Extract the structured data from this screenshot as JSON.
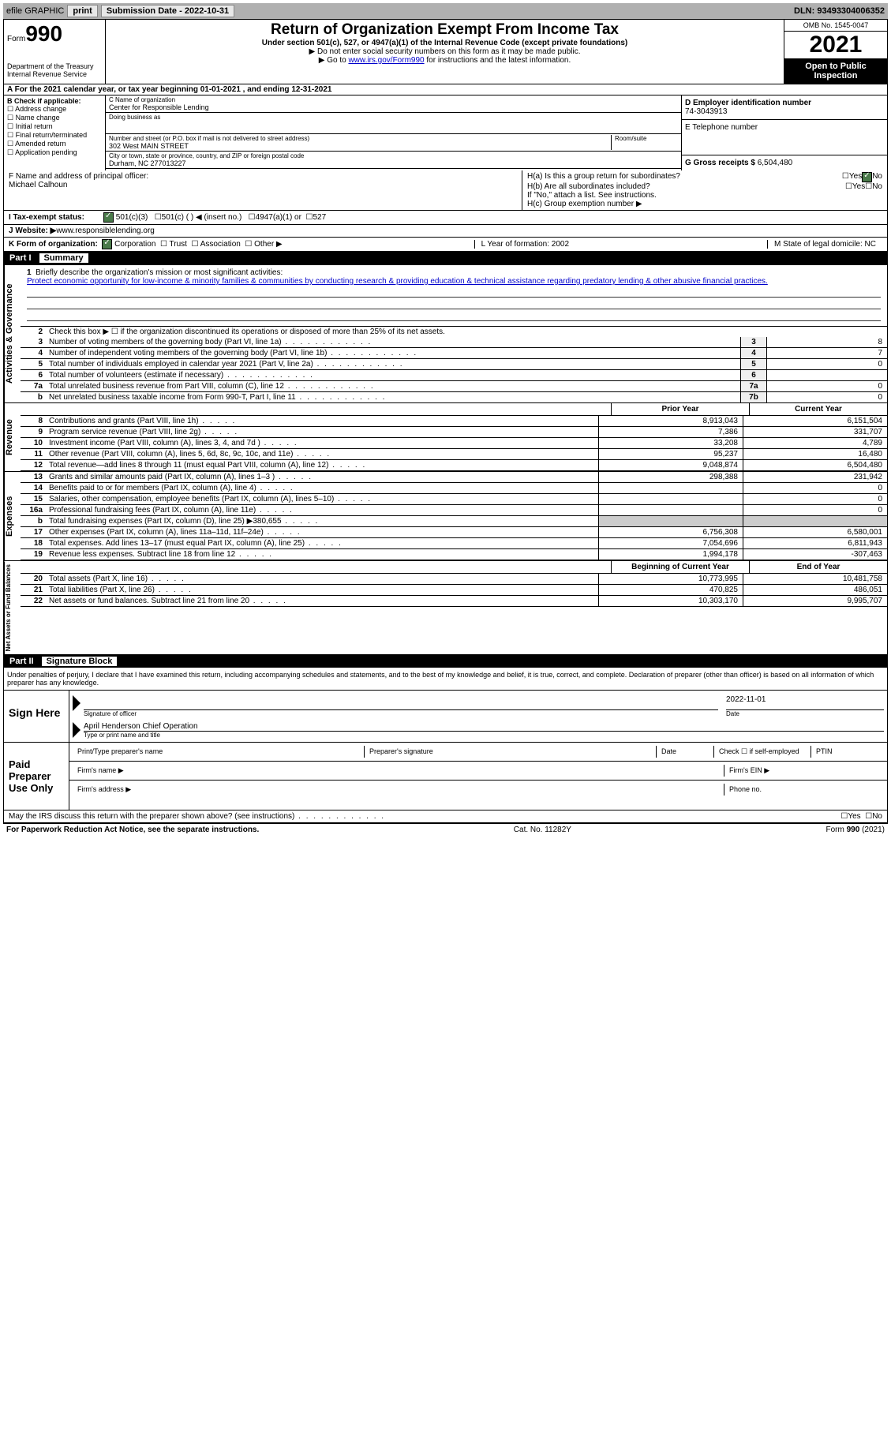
{
  "topbar": {
    "efile": "efile GRAPHIC",
    "print": "print",
    "subdate_label": "Submission Date - ",
    "subdate": "2022-10-31",
    "dln_label": "DLN: ",
    "dln": "93493304006352"
  },
  "header": {
    "form_word": "Form",
    "form_num": "990",
    "dept": "Department of the Treasury",
    "irs": "Internal Revenue Service",
    "title": "Return of Organization Exempt From Income Tax",
    "subtitle": "Under section 501(c), 527, or 4947(a)(1) of the Internal Revenue Code (except private foundations)",
    "note1": "▶ Do not enter social security numbers on this form as it may be made public.",
    "note2_a": "▶ Go to ",
    "note2_link": "www.irs.gov/Form990",
    "note2_b": " for instructions and the latest information.",
    "omb": "OMB No. 1545-0047",
    "year": "2021",
    "open": "Open to Public Inspection"
  },
  "rowA": "A For the 2021 calendar year, or tax year beginning 01-01-2021   , and ending 12-31-2021",
  "boxB": {
    "label": "B Check if applicable:",
    "items": [
      "Address change",
      "Name change",
      "Initial return",
      "Final return/terminated",
      "Amended return",
      "Application pending"
    ]
  },
  "boxC": {
    "name_label": "C Name of organization",
    "name": "Center for Responsible Lending",
    "dba_label": "Doing business as",
    "addr_label": "Number and street (or P.O. box if mail is not delivered to street address)",
    "room_label": "Room/suite",
    "addr": "302 West MAIN STREET",
    "city_label": "City or town, state or province, country, and ZIP or foreign postal code",
    "city": "Durham, NC  277013227"
  },
  "boxD": {
    "ein_label": "D Employer identification number",
    "ein": "74-3043913",
    "phone_label": "E Telephone number",
    "gross_label": "G Gross receipts $ ",
    "gross": "6,504,480"
  },
  "boxF": {
    "label": "F  Name and address of principal officer:",
    "name": "Michael Calhoun"
  },
  "boxH": {
    "ha": "H(a)  Is this a group return for subordinates?",
    "hb": "H(b)  Are all subordinates included?",
    "hb_note": "If \"No,\" attach a list. See instructions.",
    "hc": "H(c)  Group exemption number ▶",
    "yes": "Yes",
    "no": "No"
  },
  "rowI": {
    "label": "I  Tax-exempt status:",
    "opts": [
      "501(c)(3)",
      "501(c) (  ) ◀ (insert no.)",
      "4947(a)(1) or",
      "527"
    ]
  },
  "rowJ": {
    "label": "J  Website: ▶  ",
    "url": "www.responsiblelending.org"
  },
  "rowK": {
    "label": "K Form of organization:",
    "opts": [
      "Corporation",
      "Trust",
      "Association",
      "Other ▶"
    ],
    "L": "L Year of formation: 2002",
    "M": "M State of legal domicile: NC"
  },
  "part1": {
    "num": "Part I",
    "title": "Summary",
    "tab_ag": "Activities & Governance",
    "tab_rev": "Revenue",
    "tab_exp": "Expenses",
    "tab_na": "Net Assets or Fund Balances",
    "line1_label": "Briefly describe the organization's mission or most significant activities:",
    "line1_desc": "Protect economic opportunity for low-income & minority families & communities by conducting research & providing education & technical assistance regarding predatory lending & other abusive financial practices.",
    "line2": "Check this box ▶ ☐  if the organization discontinued its operations or disposed of more than 25% of its net assets.",
    "lines_single": [
      {
        "n": "3",
        "d": "Number of voting members of the governing body (Part VI, line 1a)",
        "b": "3",
        "v": "8"
      },
      {
        "n": "4",
        "d": "Number of independent voting members of the governing body (Part VI, line 1b)",
        "b": "4",
        "v": "7"
      },
      {
        "n": "5",
        "d": "Total number of individuals employed in calendar year 2021 (Part V, line 2a)",
        "b": "5",
        "v": "0"
      },
      {
        "n": "6",
        "d": "Total number of volunteers (estimate if necessary)",
        "b": "6",
        "v": ""
      },
      {
        "n": "7a",
        "d": "Total unrelated business revenue from Part VIII, column (C), line 12",
        "b": "7a",
        "v": "0"
      },
      {
        "n": "b",
        "d": "Net unrelated business taxable income from Form 990-T, Part I, line 11",
        "b": "7b",
        "v": "0"
      }
    ],
    "col_prior": "Prior Year",
    "col_current": "Current Year",
    "rev": [
      {
        "n": "8",
        "d": "Contributions and grants (Part VIII, line 1h)",
        "p": "8,913,043",
        "c": "6,151,504"
      },
      {
        "n": "9",
        "d": "Program service revenue (Part VIII, line 2g)",
        "p": "7,386",
        "c": "331,707"
      },
      {
        "n": "10",
        "d": "Investment income (Part VIII, column (A), lines 3, 4, and 7d )",
        "p": "33,208",
        "c": "4,789"
      },
      {
        "n": "11",
        "d": "Other revenue (Part VIII, column (A), lines 5, 6d, 8c, 9c, 10c, and 11e)",
        "p": "95,237",
        "c": "16,480"
      },
      {
        "n": "12",
        "d": "Total revenue—add lines 8 through 11 (must equal Part VIII, column (A), line 12)",
        "p": "9,048,874",
        "c": "6,504,480"
      }
    ],
    "exp": [
      {
        "n": "13",
        "d": "Grants and similar amounts paid (Part IX, column (A), lines 1–3 )",
        "p": "298,388",
        "c": "231,942"
      },
      {
        "n": "14",
        "d": "Benefits paid to or for members (Part IX, column (A), line 4)",
        "p": "",
        "c": "0"
      },
      {
        "n": "15",
        "d": "Salaries, other compensation, employee benefits (Part IX, column (A), lines 5–10)",
        "p": "",
        "c": "0"
      },
      {
        "n": "16a",
        "d": "Professional fundraising fees (Part IX, column (A), line 11e)",
        "p": "",
        "c": "0"
      },
      {
        "n": "b",
        "d": "Total fundraising expenses (Part IX, column (D), line 25) ▶380,655",
        "p": "shade",
        "c": "shade"
      },
      {
        "n": "17",
        "d": "Other expenses (Part IX, column (A), lines 11a–11d, 11f–24e)",
        "p": "6,756,308",
        "c": "6,580,001"
      },
      {
        "n": "18",
        "d": "Total expenses. Add lines 13–17 (must equal Part IX, column (A), line 25)",
        "p": "7,054,696",
        "c": "6,811,943"
      },
      {
        "n": "19",
        "d": "Revenue less expenses. Subtract line 18 from line 12",
        "p": "1,994,178",
        "c": "-307,463"
      }
    ],
    "col_begin": "Beginning of Current Year",
    "col_end": "End of Year",
    "na": [
      {
        "n": "20",
        "d": "Total assets (Part X, line 16)",
        "p": "10,773,995",
        "c": "10,481,758"
      },
      {
        "n": "21",
        "d": "Total liabilities (Part X, line 26)",
        "p": "470,825",
        "c": "486,051"
      },
      {
        "n": "22",
        "d": "Net assets or fund balances. Subtract line 21 from line 20",
        "p": "10,303,170",
        "c": "9,995,707"
      }
    ]
  },
  "part2": {
    "num": "Part II",
    "title": "Signature Block",
    "penalties": "Under penalties of perjury, I declare that I have examined this return, including accompanying schedules and statements, and to the best of my knowledge and belief, it is true, correct, and complete. Declaration of preparer (other than officer) is based on all information of which preparer has any knowledge."
  },
  "sign": {
    "label": "Sign Here",
    "sig_officer": "Signature of officer",
    "date": "2022-11-01",
    "date_label": "Date",
    "name": "April Henderson  Chief Operation",
    "name_label": "Type or print name and title"
  },
  "paid": {
    "label": "Paid Preparer Use Only",
    "r1": [
      "Print/Type preparer's name",
      "Preparer's signature",
      "Date",
      "Check ☐ if self-employed",
      "PTIN"
    ],
    "r2a": "Firm's name  ▶",
    "r2b": "Firm's EIN ▶",
    "r3a": "Firm's address ▶",
    "r3b": "Phone no."
  },
  "footer": {
    "q": "May the IRS discuss this return with the preparer shown above? (see instructions)",
    "yes": "Yes",
    "no": "No",
    "pra": "For Paperwork Reduction Act Notice, see the separate instructions.",
    "cat": "Cat. No. 11282Y",
    "form": "Form 990 (2021)"
  }
}
